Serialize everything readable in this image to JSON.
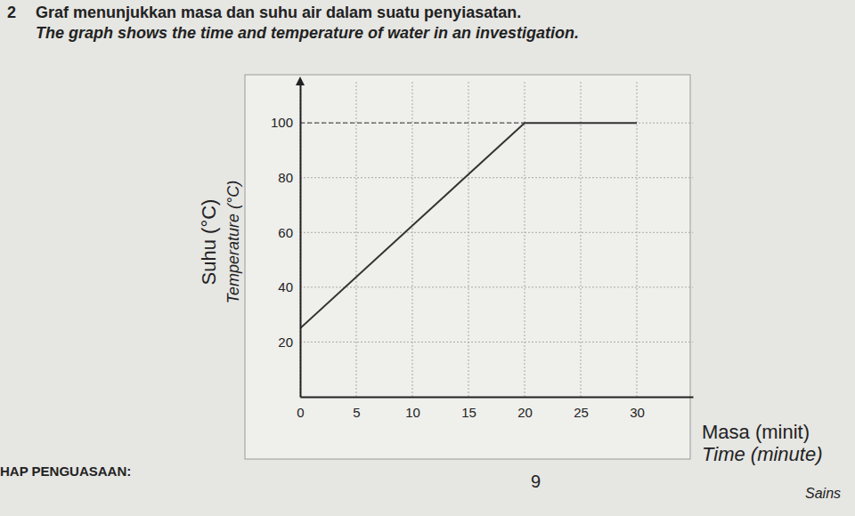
{
  "chart_data": {
    "type": "line",
    "title": "Graf menunjukkan masa dan suhu air dalam suatu penyiasatan.",
    "subtitle": "The graph shows the time and temperature of water in an investigation.",
    "xlabel": [
      "Masa (minit)",
      "Time (minute)"
    ],
    "ylabel": [
      "Suhu (°C)",
      "Temperature (°C)"
    ],
    "annotations": [
      "2",
      "HAP PENGUASAAN:",
      "9",
      "Sains"
    ],
    "x": [
      0,
      20,
      30
    ],
    "series": [
      {
        "name": "Suhu",
        "color": "#333333",
        "values": [
          25,
          100,
          100
        ],
        "line_style": "solid"
      }
    ],
    "xlim": [
      0,
      35
    ],
    "ylim": [
      0,
      115
    ],
    "xticks": [
      0,
      5,
      10,
      15,
      20,
      25,
      30
    ],
    "yticks": [
      20,
      40,
      60,
      80,
      100
    ],
    "grid": true
  }
}
